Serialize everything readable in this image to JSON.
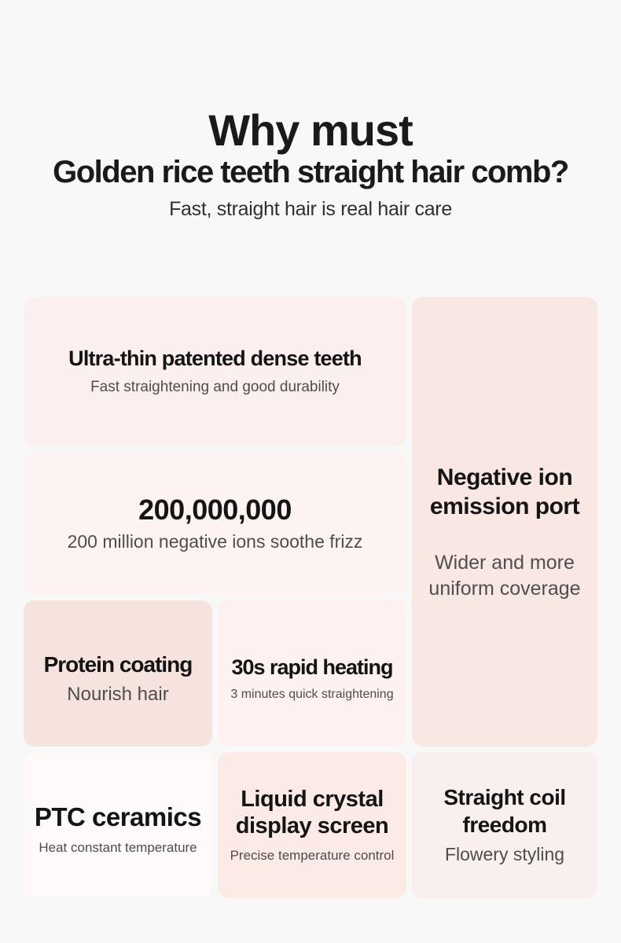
{
  "page_background": "#f8f8f8",
  "header": {
    "title_line1": "Why must",
    "title_line2": "Golden rice teeth straight hair comb?",
    "subtitle": "Fast, straight hair is real hair care"
  },
  "cards": {
    "dense_teeth": {
      "title": "Ultra-thin patented dense teeth",
      "subtitle": "Fast straightening and good durability",
      "bg": "#fcf0ee"
    },
    "negative_ions_count": {
      "title": "200,000,000",
      "subtitle": "200 million negative ions soothe frizz",
      "bg": "#fdf4f2"
    },
    "ion_port": {
      "title": "Negative ion\nemission port",
      "subtitle": "Wider and more\nuniform coverage",
      "bg": "#f8e7e3"
    },
    "protein_coating": {
      "title": "Protein coating",
      "subtitle": "Nourish hair",
      "bg": "#f7e3de"
    },
    "rapid_heating": {
      "title": "30s rapid heating",
      "subtitle": "3 minutes quick straightening",
      "bg": "#fdf2ef"
    },
    "ptc_ceramics": {
      "title": "PTC ceramics",
      "subtitle": "Heat constant temperature",
      "bg": "#fdfaf9"
    },
    "lcd_screen": {
      "title": "Liquid crystal\ndisplay screen",
      "subtitle": "Precise temperature control",
      "bg": "#fbeae6"
    },
    "straight_coil": {
      "title": "Straight coil\nfreedom",
      "subtitle": "Flowery styling",
      "bg": "#f9efed"
    }
  }
}
